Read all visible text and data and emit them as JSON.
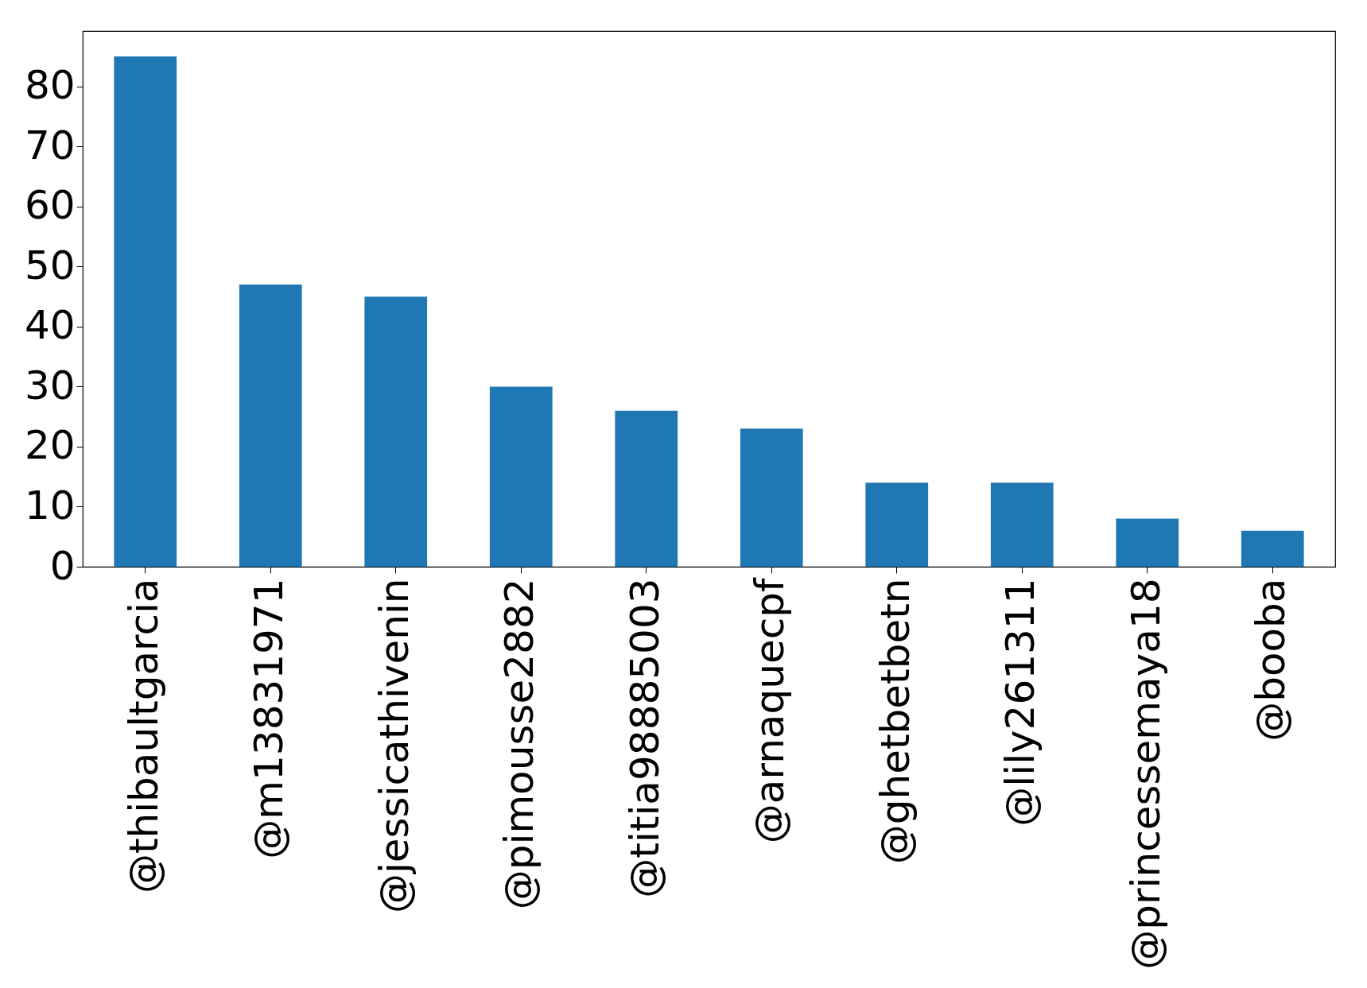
{
  "chart_data": {
    "type": "bar",
    "categories": [
      "@thibaultgarcia",
      "@m13831971",
      "@jessicathivenin",
      "@pimousse2882",
      "@titia98885003",
      "@arnaquecpf",
      "@ghetbetbetn",
      "@lily261311",
      "@princessemaya18",
      "@booba"
    ],
    "values": [
      85,
      47,
      45,
      30,
      26,
      23,
      14,
      14,
      8,
      6
    ],
    "color": "#1f77b4",
    "ylim": [
      0,
      89.25
    ],
    "yticks": [
      0,
      10,
      20,
      30,
      40,
      50,
      60,
      70,
      80
    ],
    "grid": false
  }
}
